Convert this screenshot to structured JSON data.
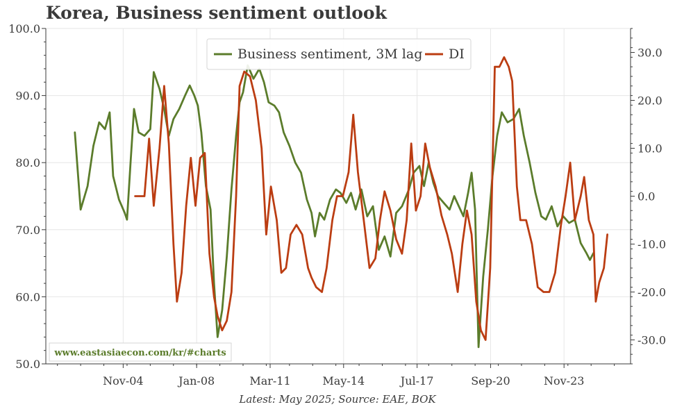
{
  "header": {
    "title": "Korea, Business sentiment outlook"
  },
  "footer": {
    "note": "Latest: May 2025; Source: EAE, BOK"
  },
  "watermark": {
    "text": "www.eastasiaecon.com/kr/#charts"
  },
  "colors": {
    "sentiment": "#5b7c2b",
    "di": "#bb3d12",
    "grid": "#e6e6e6",
    "axis": "#3a3a3a"
  },
  "chart_data": {
    "type": "line",
    "title": "Korea, Business sentiment outlook",
    "x_ticks": [
      {
        "label": "Nov-04",
        "t": 2004.833
      },
      {
        "label": "Jan-08",
        "t": 2008.0
      },
      {
        "label": "Mar-11",
        "t": 2011.167
      },
      {
        "label": "May-14",
        "t": 2014.333
      },
      {
        "label": "Jul-17",
        "t": 2017.5
      },
      {
        "label": "Sep-20",
        "t": 2020.667
      },
      {
        "label": "Nov-23",
        "t": 2023.833
      }
    ],
    "x_range": [
      2001.5,
      2026.7
    ],
    "y_left": {
      "range": [
        50,
        100
      ],
      "ticks": [
        "50.0",
        "60.0",
        "70.0",
        "80.0",
        "90.0",
        "100.0"
      ]
    },
    "y_right": {
      "range": [
        -35,
        35
      ],
      "ticks": [
        "-30.0",
        "-20.0",
        "-10.0",
        "0.0",
        "10.0",
        "20.0",
        "30.0"
      ]
    },
    "grid": true,
    "legend_position": "top-center",
    "series": [
      {
        "name": "Business sentiment, 3M lag",
        "axis": "left",
        "color": "#5b7c2b",
        "points": [
          [
            2002.75,
            84.5
          ],
          [
            2003.0,
            73.0
          ],
          [
            2003.3,
            76.5
          ],
          [
            2003.55,
            82.5
          ],
          [
            2003.8,
            86.0
          ],
          [
            2004.05,
            85.0
          ],
          [
            2004.25,
            87.5
          ],
          [
            2004.4,
            78.0
          ],
          [
            2004.65,
            74.5
          ],
          [
            2004.9,
            72.5
          ],
          [
            2005.0,
            71.5
          ],
          [
            2005.15,
            80.0
          ],
          [
            2005.3,
            88.0
          ],
          [
            2005.5,
            84.5
          ],
          [
            2005.75,
            84.0
          ],
          [
            2006.0,
            85.0
          ],
          [
            2006.15,
            93.5
          ],
          [
            2006.4,
            91.0
          ],
          [
            2006.6,
            88.0
          ],
          [
            2006.8,
            84.0
          ],
          [
            2007.0,
            86.5
          ],
          [
            2007.25,
            88.0
          ],
          [
            2007.5,
            90.0
          ],
          [
            2007.7,
            91.5
          ],
          [
            2007.9,
            90.0
          ],
          [
            2008.05,
            88.5
          ],
          [
            2008.2,
            84.5
          ],
          [
            2008.4,
            76.5
          ],
          [
            2008.6,
            73.0
          ],
          [
            2008.75,
            62.0
          ],
          [
            2008.9,
            54.0
          ],
          [
            2009.1,
            58.0
          ],
          [
            2009.3,
            66.0
          ],
          [
            2009.5,
            76.0
          ],
          [
            2009.7,
            84.0
          ],
          [
            2009.85,
            89.0
          ],
          [
            2010.0,
            90.5
          ],
          [
            2010.2,
            94.5
          ],
          [
            2010.45,
            92.5
          ],
          [
            2010.7,
            94.0
          ],
          [
            2010.9,
            92.0
          ],
          [
            2011.1,
            89.0
          ],
          [
            2011.35,
            88.5
          ],
          [
            2011.55,
            87.5
          ],
          [
            2011.75,
            84.5
          ],
          [
            2012.0,
            82.5
          ],
          [
            2012.25,
            80.0
          ],
          [
            2012.5,
            78.5
          ],
          [
            2012.75,
            74.5
          ],
          [
            2012.95,
            72.5
          ],
          [
            2013.1,
            69.0
          ],
          [
            2013.3,
            72.5
          ],
          [
            2013.5,
            71.5
          ],
          [
            2013.75,
            74.5
          ],
          [
            2014.0,
            76.0
          ],
          [
            2014.2,
            75.5
          ],
          [
            2014.45,
            74.0
          ],
          [
            2014.65,
            75.5
          ],
          [
            2014.85,
            73.0
          ],
          [
            2015.1,
            76.0
          ],
          [
            2015.35,
            72.0
          ],
          [
            2015.6,
            73.5
          ],
          [
            2015.85,
            67.0
          ],
          [
            2016.1,
            69.0
          ],
          [
            2016.35,
            66.0
          ],
          [
            2016.6,
            72.5
          ],
          [
            2016.85,
            73.5
          ],
          [
            2017.15,
            76.0
          ],
          [
            2017.35,
            78.5
          ],
          [
            2017.6,
            79.5
          ],
          [
            2017.8,
            76.5
          ],
          [
            2018.0,
            80.0
          ],
          [
            2018.2,
            77.0
          ],
          [
            2018.4,
            75.0
          ],
          [
            2018.65,
            74.0
          ],
          [
            2018.9,
            73.0
          ],
          [
            2019.1,
            75.0
          ],
          [
            2019.3,
            73.5
          ],
          [
            2019.5,
            72.0
          ],
          [
            2019.7,
            75.5
          ],
          [
            2019.85,
            78.5
          ],
          [
            2020.0,
            73.0
          ],
          [
            2020.15,
            52.5
          ],
          [
            2020.35,
            63.0
          ],
          [
            2020.55,
            70.0
          ],
          [
            2020.75,
            78.0
          ],
          [
            2020.95,
            84.0
          ],
          [
            2021.15,
            87.5
          ],
          [
            2021.4,
            86.0
          ],
          [
            2021.65,
            86.5
          ],
          [
            2021.9,
            88.0
          ],
          [
            2022.1,
            84.0
          ],
          [
            2022.35,
            80.0
          ],
          [
            2022.6,
            75.5
          ],
          [
            2022.85,
            72.0
          ],
          [
            2023.05,
            71.5
          ],
          [
            2023.3,
            73.5
          ],
          [
            2023.55,
            70.5
          ],
          [
            2023.8,
            72.0
          ],
          [
            2024.05,
            71.0
          ],
          [
            2024.3,
            71.5
          ],
          [
            2024.55,
            68.0
          ],
          [
            2024.8,
            66.5
          ],
          [
            2024.95,
            65.5
          ],
          [
            2025.1,
            66.5
          ]
        ]
      },
      {
        "name": "DI",
        "axis": "right",
        "color": "#bb3d12",
        "points": [
          [
            2005.35,
            0.0
          ],
          [
            2005.75,
            0.0
          ],
          [
            2005.95,
            12.0
          ],
          [
            2006.15,
            -2.0
          ],
          [
            2006.4,
            10.0
          ],
          [
            2006.6,
            23.0
          ],
          [
            2006.8,
            11.0
          ],
          [
            2007.0,
            -10.0
          ],
          [
            2007.15,
            -22.0
          ],
          [
            2007.35,
            -16.0
          ],
          [
            2007.55,
            -2.0
          ],
          [
            2007.75,
            8.0
          ],
          [
            2007.95,
            -2.0
          ],
          [
            2008.15,
            8.0
          ],
          [
            2008.35,
            9.0
          ],
          [
            2008.55,
            -12.0
          ],
          [
            2008.75,
            -21.0
          ],
          [
            2008.9,
            -25.0
          ],
          [
            2009.1,
            -28.0
          ],
          [
            2009.3,
            -26.0
          ],
          [
            2009.5,
            -20.0
          ],
          [
            2009.7,
            0.0
          ],
          [
            2009.85,
            23.0
          ],
          [
            2010.05,
            26.0
          ],
          [
            2010.3,
            25.0
          ],
          [
            2010.55,
            20.0
          ],
          [
            2010.8,
            10.0
          ],
          [
            2011.0,
            -8.0
          ],
          [
            2011.2,
            2.0
          ],
          [
            2011.45,
            -5.0
          ],
          [
            2011.65,
            -16.0
          ],
          [
            2011.85,
            -15.0
          ],
          [
            2012.05,
            -8.0
          ],
          [
            2012.3,
            -6.0
          ],
          [
            2012.55,
            -8.0
          ],
          [
            2012.8,
            -15.0
          ],
          [
            2012.95,
            -17.0
          ],
          [
            2013.15,
            -19.0
          ],
          [
            2013.4,
            -20.0
          ],
          [
            2013.6,
            -15.0
          ],
          [
            2013.85,
            -5.0
          ],
          [
            2014.05,
            0.0
          ],
          [
            2014.3,
            0.0
          ],
          [
            2014.55,
            5.0
          ],
          [
            2014.75,
            17.0
          ],
          [
            2014.95,
            5.0
          ],
          [
            2015.2,
            -5.0
          ],
          [
            2015.45,
            -15.0
          ],
          [
            2015.7,
            -13.0
          ],
          [
            2015.9,
            -5.0
          ],
          [
            2016.1,
            1.0
          ],
          [
            2016.35,
            -3.0
          ],
          [
            2016.6,
            -9.0
          ],
          [
            2016.85,
            -12.0
          ],
          [
            2017.05,
            -5.0
          ],
          [
            2017.25,
            11.0
          ],
          [
            2017.45,
            -3.0
          ],
          [
            2017.65,
            0.0
          ],
          [
            2017.85,
            11.0
          ],
          [
            2018.05,
            6.0
          ],
          [
            2018.3,
            2.0
          ],
          [
            2018.55,
            -4.0
          ],
          [
            2018.8,
            -8.0
          ],
          [
            2019.0,
            -12.0
          ],
          [
            2019.25,
            -20.0
          ],
          [
            2019.45,
            -10.0
          ],
          [
            2019.65,
            -3.0
          ],
          [
            2019.85,
            -8.0
          ],
          [
            2020.05,
            -22.0
          ],
          [
            2020.25,
            -28.0
          ],
          [
            2020.45,
            -30.0
          ],
          [
            2020.65,
            -15.0
          ],
          [
            2020.85,
            27.0
          ],
          [
            2021.05,
            27.0
          ],
          [
            2021.25,
            29.0
          ],
          [
            2021.45,
            27.0
          ],
          [
            2021.6,
            24.0
          ],
          [
            2021.8,
            2.0
          ],
          [
            2021.95,
            -5.0
          ],
          [
            2022.2,
            -5.0
          ],
          [
            2022.45,
            -10.0
          ],
          [
            2022.7,
            -19.0
          ],
          [
            2022.95,
            -20.0
          ],
          [
            2023.2,
            -20.0
          ],
          [
            2023.45,
            -16.0
          ],
          [
            2023.7,
            -6.0
          ],
          [
            2023.9,
            0.0
          ],
          [
            2024.1,
            7.0
          ],
          [
            2024.3,
            -5.0
          ],
          [
            2024.55,
            0.0
          ],
          [
            2024.7,
            4.0
          ],
          [
            2024.9,
            -5.0
          ],
          [
            2025.1,
            -8.0
          ],
          [
            2025.2,
            -22.0
          ],
          [
            2025.35,
            -18.0
          ],
          [
            2025.55,
            -15.0
          ],
          [
            2025.7,
            -8.0
          ]
        ]
      }
    ]
  }
}
